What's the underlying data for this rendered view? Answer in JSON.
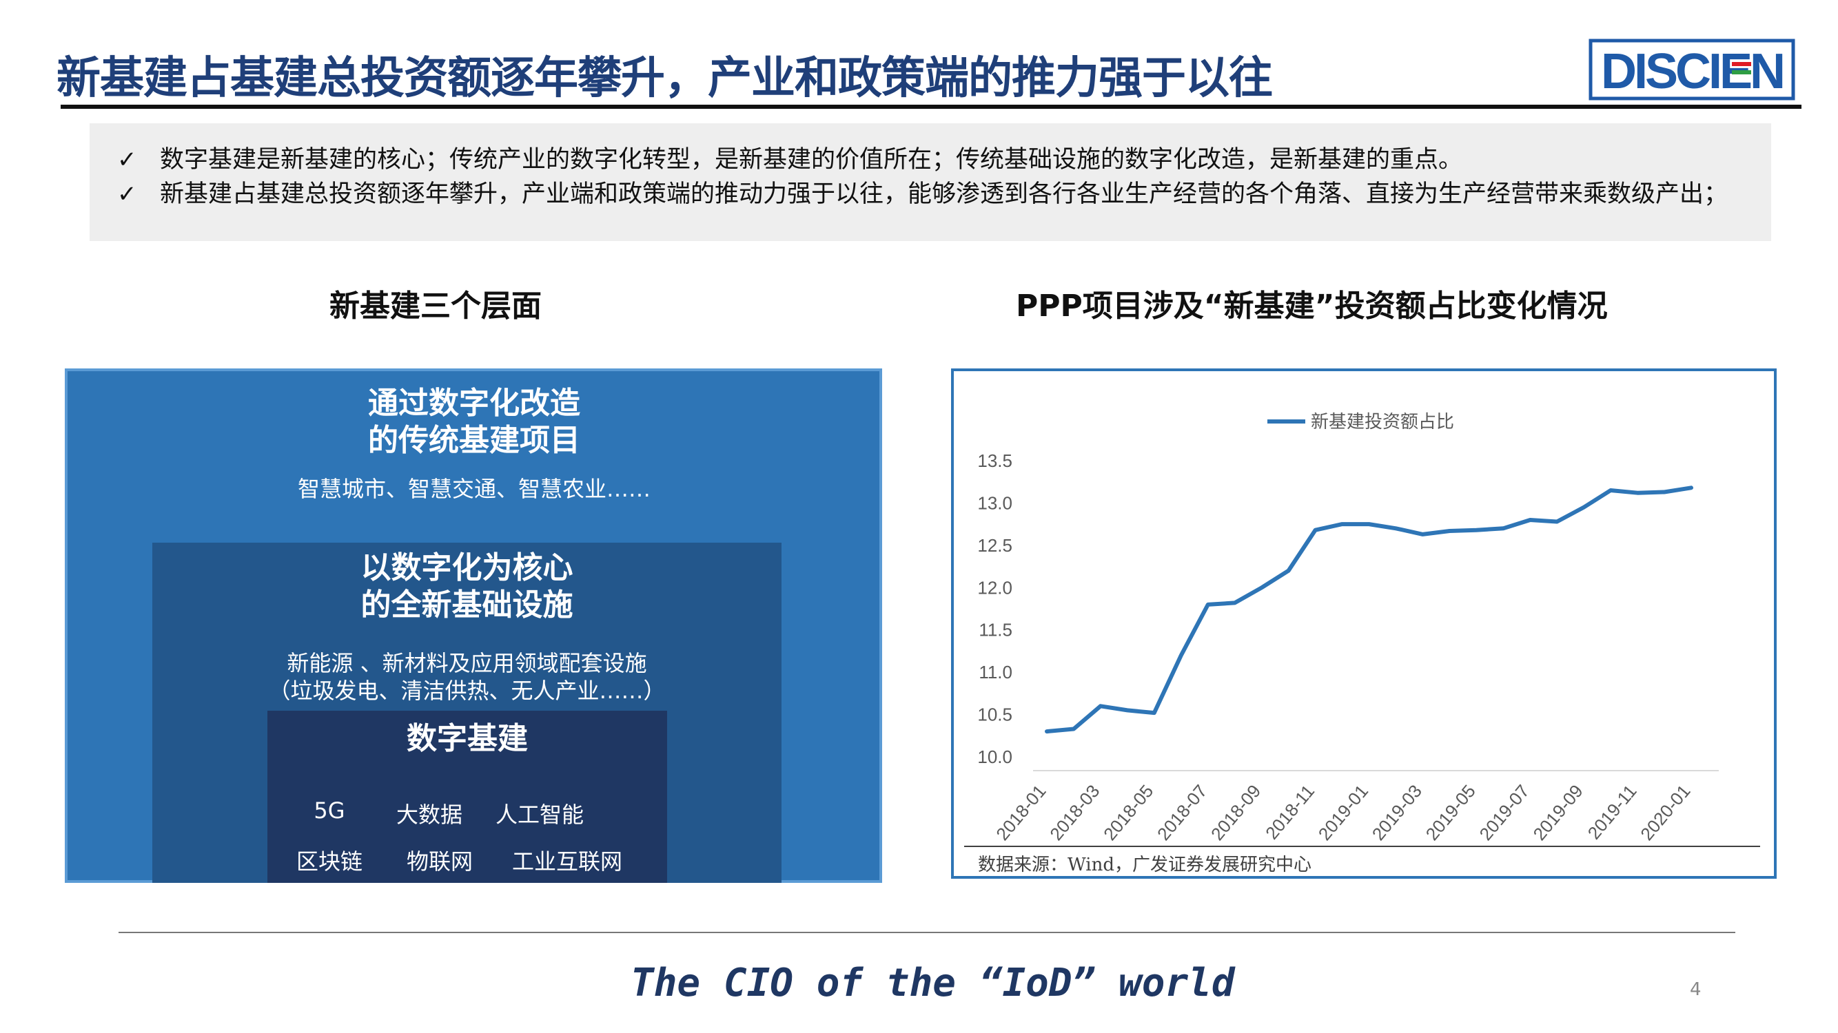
{
  "header": {
    "title": "新基建占基建总投资额逐年攀升，产业和政策端的推力强于以往",
    "logo_text": "DISCIEN"
  },
  "bullets": [
    "数字基建是新基建的核心；传统产业的数字化转型，是新基建的价值所在；传统基础设施的数字化改造，是新基建的重点。",
    "新基建占基建总投资额逐年攀升，产业端和政策端的推动力强于以往，能够渗透到各行各业生产经营的各个角落、直接为生产经营带来乘数级产出；"
  ],
  "check_glyph": "✓",
  "left_section": {
    "title": "新基建三个层面",
    "outer": {
      "heading_line1": "通过数字化改造",
      "heading_line2": "的传统基建项目",
      "desc": "智慧城市、智慧交通、智慧农业……"
    },
    "middle": {
      "heading_line1": "以数字化为核心",
      "heading_line2": "的全新基础设施",
      "desc_line1": "新能源 、新材料及应用领域配套设施",
      "desc_line2": "（垃圾发电、清洁供热、无人产业……）"
    },
    "inner": {
      "heading": "数字基建",
      "items": [
        "5G",
        "大数据",
        "人工智能",
        "区块链",
        "物联网",
        "工业互联网"
      ]
    }
  },
  "right_section": {
    "title": "PPP项目涉及“新基建”投资额占比变化情况",
    "source": "数据来源：Wind，广发证券发展研究中心"
  },
  "chart_data": {
    "type": "line",
    "title": "",
    "xlabel": "",
    "ylabel": "",
    "ylim": [
      10.0,
      13.5
    ],
    "yticks": [
      "10.0",
      "10.5",
      "11.0",
      "11.5",
      "12.0",
      "12.5",
      "13.0",
      "13.5"
    ],
    "xticks": [
      "2018-01",
      "2018-03",
      "2018-05",
      "2018-07",
      "2018-09",
      "2018-11",
      "2019-01",
      "2019-03",
      "2019-05",
      "2019-07",
      "2019-09",
      "2019-11",
      "2020-01"
    ],
    "grid": false,
    "legend": "top-center",
    "series": [
      {
        "name": "新基建投资额占比",
        "color": "#2e75b6",
        "x": [
          "2018-01",
          "2018-02",
          "2018-03",
          "2018-04",
          "2018-05",
          "2018-06",
          "2018-07",
          "2018-08",
          "2018-09",
          "2018-10",
          "2018-11",
          "2018-12",
          "2019-01",
          "2019-02",
          "2019-03",
          "2019-04",
          "2019-05",
          "2019-06",
          "2019-07",
          "2019-08",
          "2019-09",
          "2019-10",
          "2019-11",
          "2019-12",
          "2020-01"
        ],
        "values": [
          10.3,
          10.33,
          10.6,
          10.55,
          10.52,
          11.2,
          11.8,
          11.82,
          12.0,
          12.2,
          12.68,
          12.75,
          12.75,
          12.7,
          12.63,
          12.67,
          12.68,
          12.7,
          12.8,
          12.78,
          12.95,
          13.15,
          13.12,
          13.13,
          13.18
        ]
      }
    ]
  },
  "footer": {
    "tagline": "The CIO of the “IoD” world",
    "page_number": "4"
  }
}
